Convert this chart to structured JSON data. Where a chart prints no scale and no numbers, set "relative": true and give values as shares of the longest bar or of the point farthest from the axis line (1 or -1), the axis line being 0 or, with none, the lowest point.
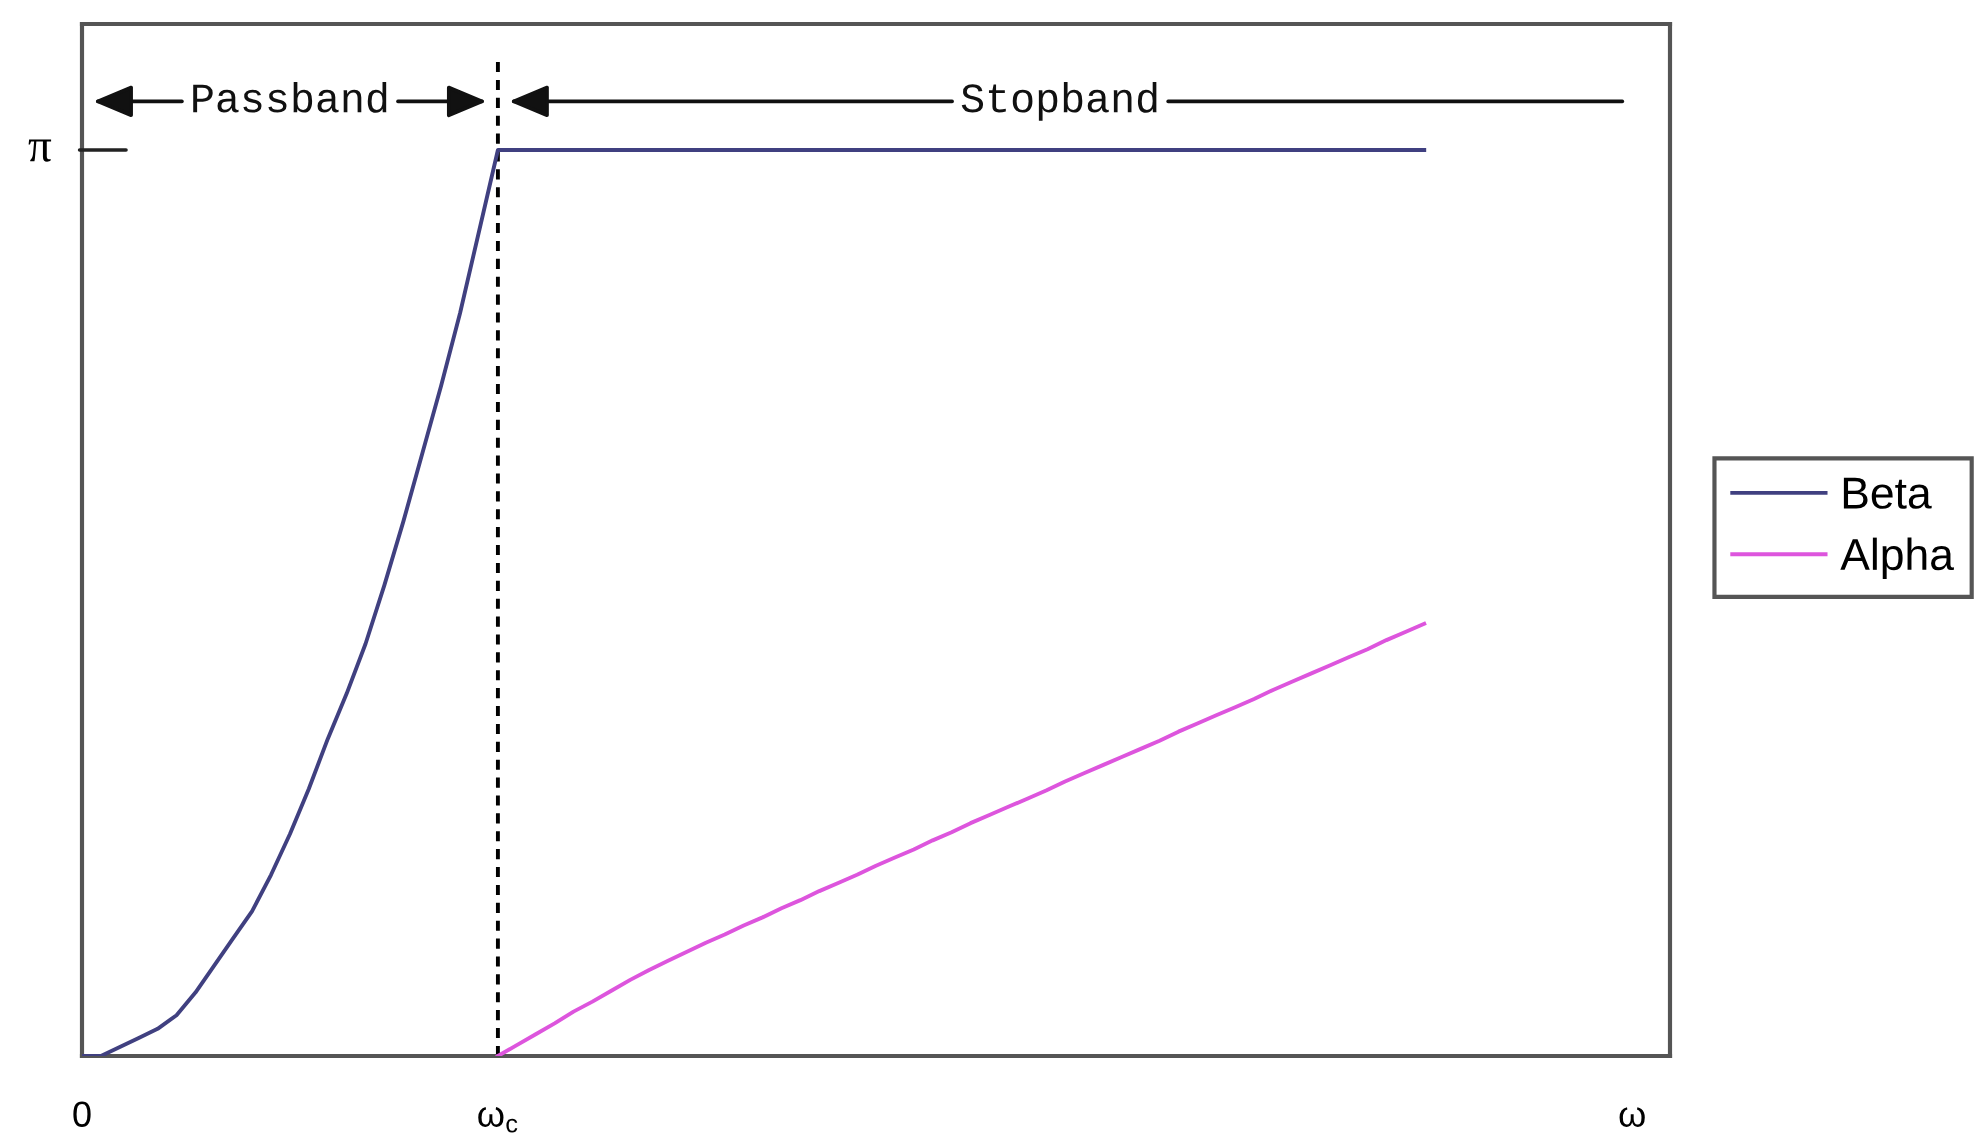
{
  "chart_data": {
    "type": "line",
    "relative": true,
    "categories": [
      "0",
      null,
      null,
      null,
      null,
      null,
      null,
      null,
      null,
      null,
      null,
      null,
      null,
      null,
      null,
      null,
      null,
      null,
      null,
      null,
      null,
      null,
      "ω$_{c}$",
      null,
      null,
      null,
      null,
      null,
      null,
      null,
      null,
      null,
      null,
      null,
      null,
      null,
      null,
      null,
      null,
      null,
      null,
      null,
      null,
      null,
      null,
      null,
      null,
      null,
      null,
      null,
      null,
      null,
      null,
      null,
      null,
      null,
      null,
      null,
      null,
      null,
      null,
      null,
      null,
      null,
      null,
      null,
      null,
      null,
      null,
      null,
      null,
      null,
      null,
      null,
      null,
      null,
      null,
      null,
      null,
      null,
      null,
      null,
      "ω",
      null,
      null
    ],
    "series": [
      {
        "name": "Beta",
        "color": "#404080",
        "values": [
          0,
          0,
          0.01,
          0.02,
          0.03,
          0.045,
          0.07,
          0.1,
          0.13,
          0.16,
          0.2,
          0.245,
          0.295,
          0.35,
          0.4,
          0.455,
          0.52,
          0.59,
          0.665,
          0.74,
          0.82,
          0.91,
          1,
          1,
          1,
          1,
          1,
          1,
          1,
          1,
          1,
          1,
          1,
          1,
          1,
          1,
          1,
          1,
          1,
          1,
          1,
          1,
          1,
          1,
          1,
          1,
          1,
          1,
          1,
          1,
          1,
          1,
          1,
          1,
          1,
          1,
          1,
          1,
          1,
          1,
          1,
          1,
          1,
          1,
          1,
          1,
          1,
          1,
          1,
          1,
          1,
          1,
          null,
          null,
          null,
          null,
          null,
          null,
          null,
          null,
          null,
          null,
          null,
          null,
          null
        ]
      },
      {
        "name": "Alpha",
        "color": "#dd55dd",
        "values": [
          null,
          null,
          null,
          null,
          null,
          null,
          null,
          null,
          null,
          null,
          null,
          null,
          null,
          null,
          null,
          null,
          null,
          null,
          null,
          null,
          null,
          null,
          0,
          0.012,
          0.024,
          0.036,
          0.049,
          0.06,
          0.072,
          0.084,
          0.095,
          0.105,
          0.115,
          0.125,
          0.134,
          0.144,
          0.153,
          0.163,
          0.172,
          0.182,
          0.191,
          0.2,
          0.21,
          0.219,
          0.228,
          0.238,
          0.247,
          0.257,
          0.266,
          0.275,
          0.284,
          0.293,
          0.303,
          0.312,
          0.321,
          0.33,
          0.339,
          0.348,
          0.358,
          0.367,
          0.376,
          0.385,
          0.394,
          0.404,
          0.413,
          0.422,
          0.431,
          0.44,
          0.449,
          0.459,
          0.468,
          0.477,
          null,
          null,
          null,
          null,
          null,
          null,
          null,
          null,
          null,
          null,
          null,
          null,
          null
        ]
      }
    ],
    "ref_lines": [
      {
        "axis": "x",
        "value": "ω$_{c}$",
        "color": "#000000",
        "line_style": "dashed"
      }
    ],
    "annotations": [
      "π",
      "Passband",
      "Stopband"
    ],
    "legend": "right"
  }
}
